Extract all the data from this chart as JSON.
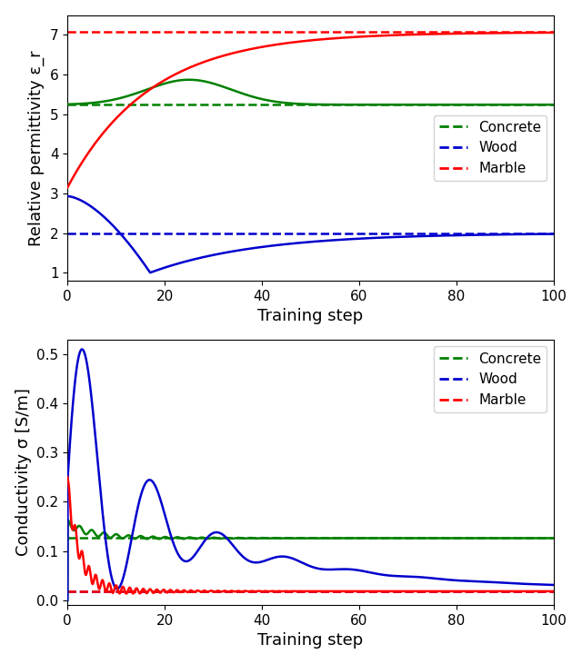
{
  "ylabel1": "Relative permittivity ε_r",
  "ylabel2": "Conductivity σ [S/m]",
  "xlabel": "Training step",
  "colors": {
    "concrete": "#008000",
    "wood": "#0000CD",
    "marble": "#FF0000"
  },
  "target_permittivity": {
    "concrete": 5.24,
    "wood": 2.0,
    "marble": 7.07
  },
  "target_conductivity": {
    "concrete": 0.126,
    "wood": 0.018,
    "marble": 0.018
  },
  "ylim1": [
    0.8,
    7.5
  ],
  "ylim2": [
    -0.01,
    0.53
  ],
  "xlim": [
    0,
    100
  ],
  "yticks1": [
    1,
    2,
    3,
    4,
    5,
    6,
    7
  ],
  "yticks2": [
    0.0,
    0.1,
    0.2,
    0.3,
    0.4,
    0.5
  ],
  "xticks": [
    0,
    20,
    40,
    60,
    80,
    100
  ],
  "legend_items": [
    "Concrete",
    "Wood",
    "Marble"
  ],
  "figsize": [
    6.4,
    7.31
  ],
  "dpi": 100
}
